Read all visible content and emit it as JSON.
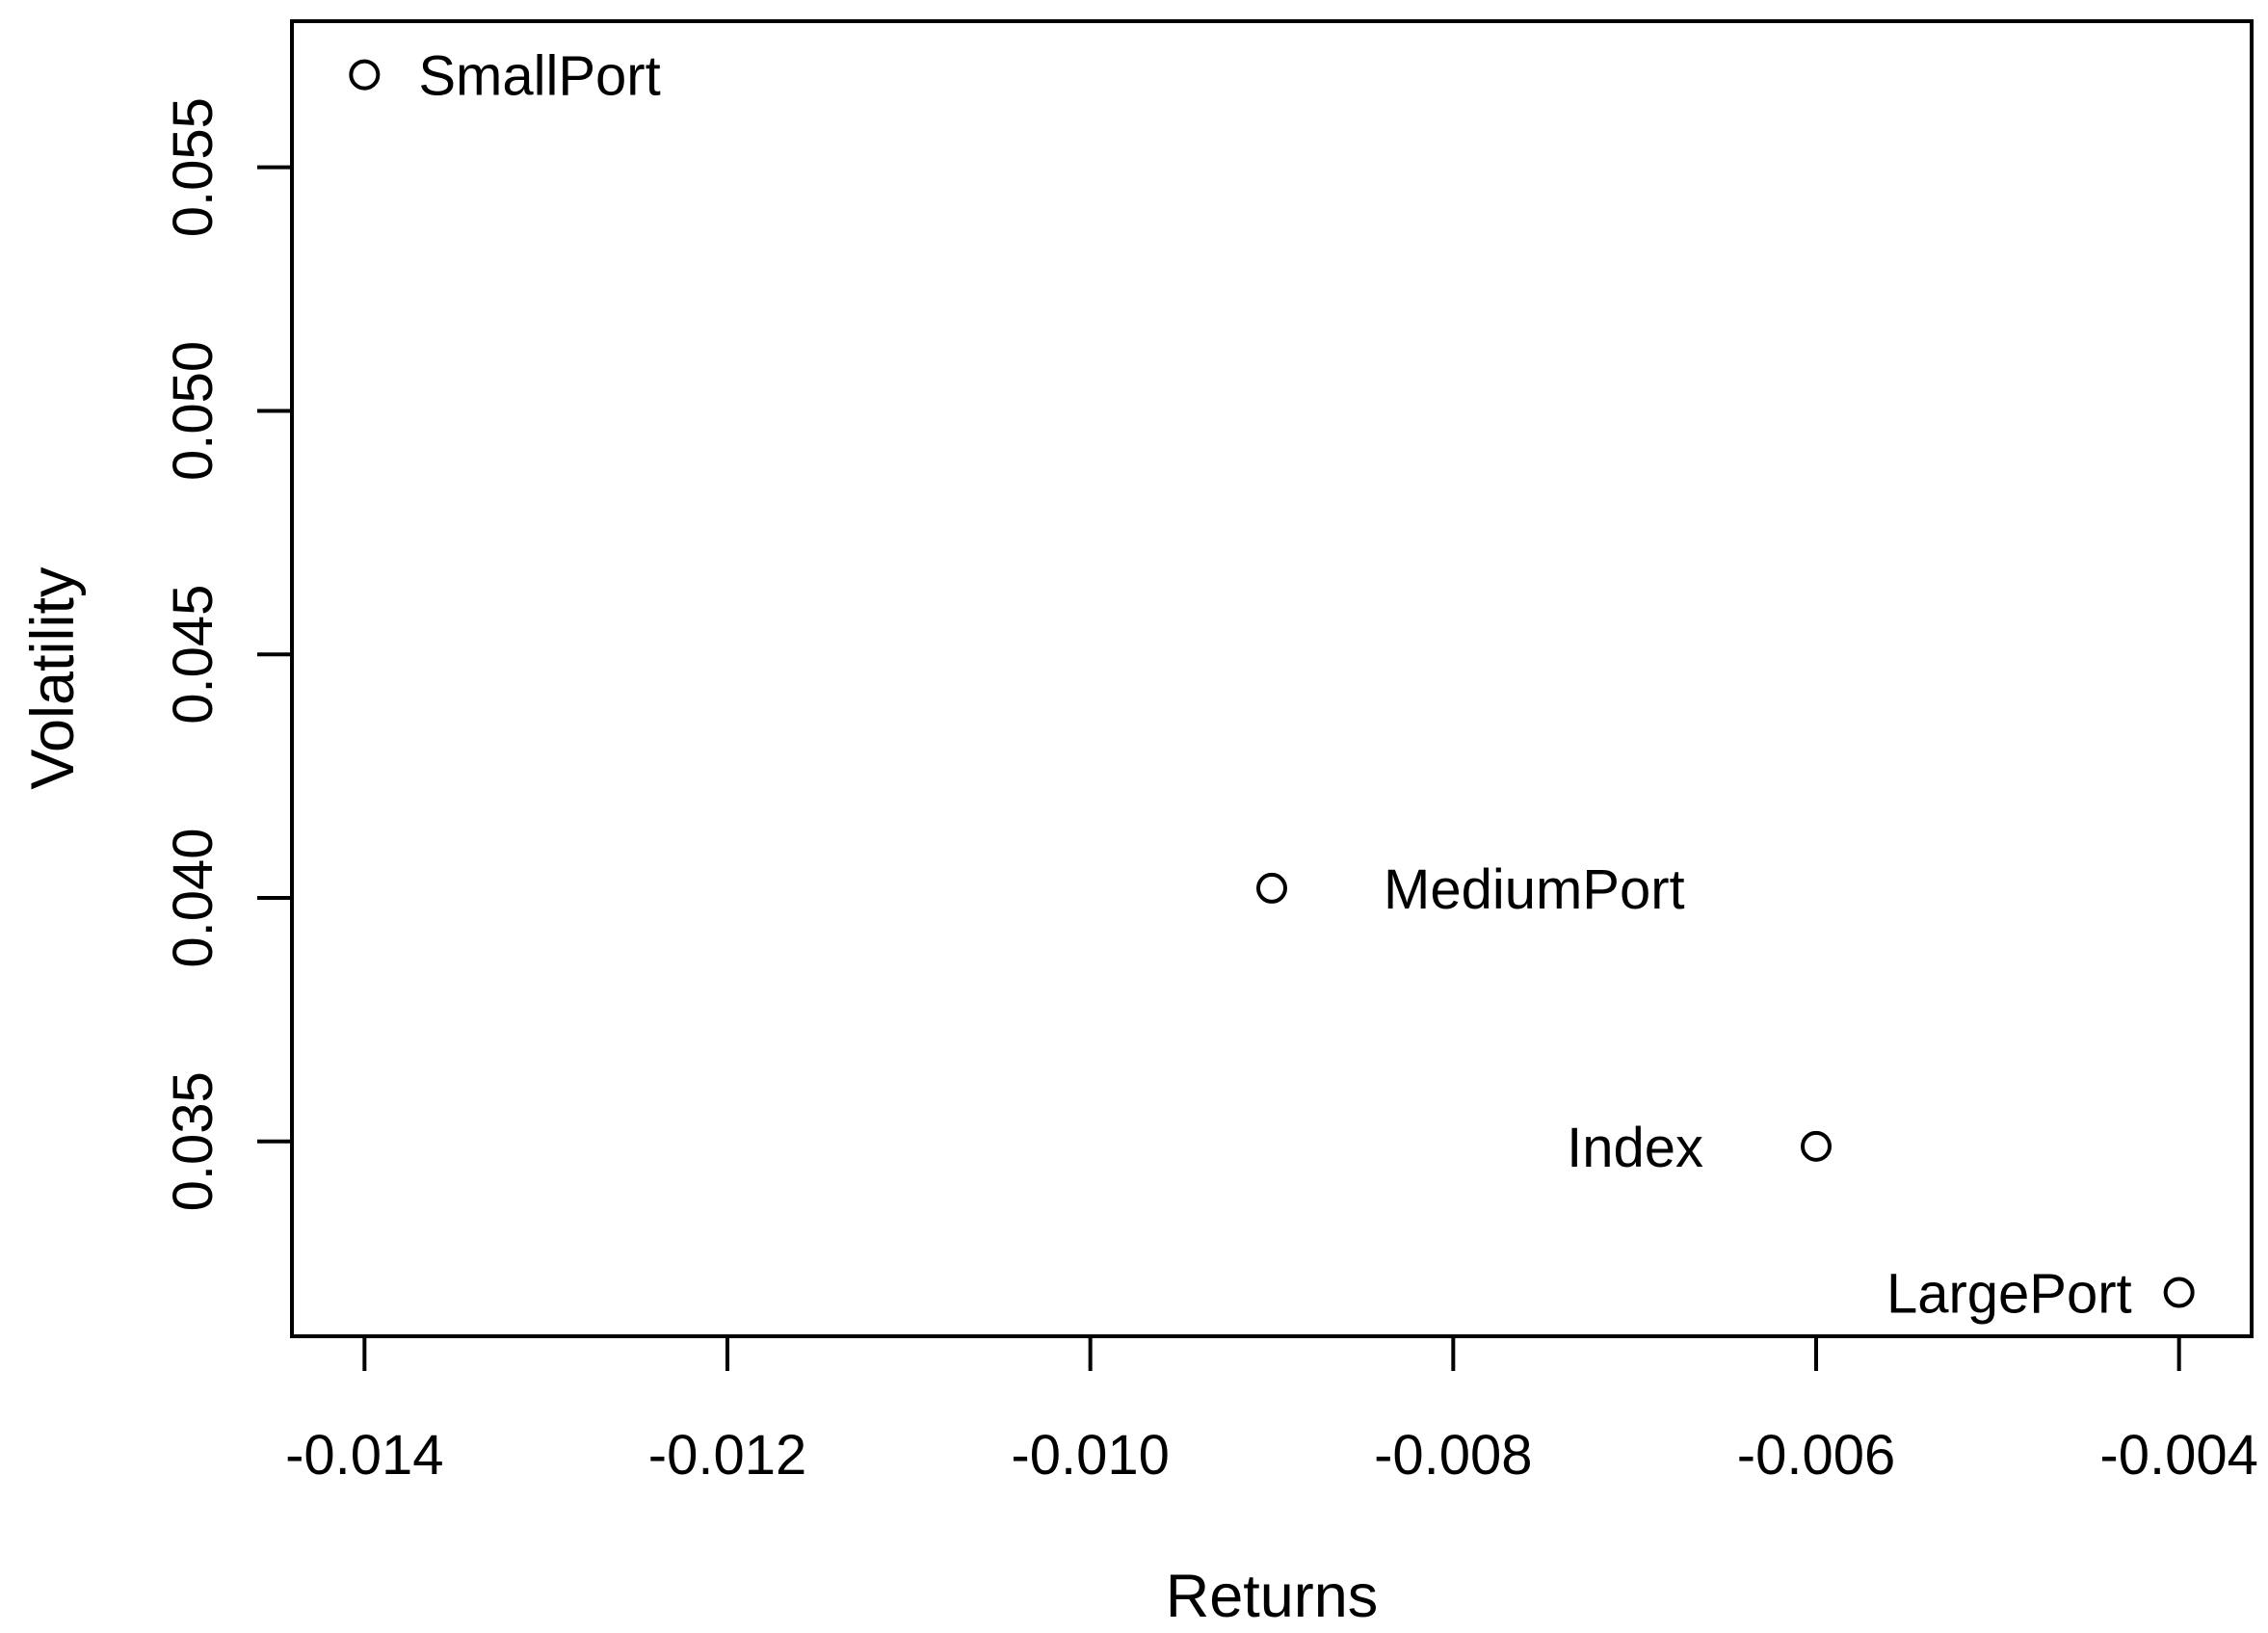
{
  "figure": {
    "background": "#ffffff",
    "foreground": "#000000"
  },
  "chart_data": {
    "type": "scatter",
    "title": "",
    "xlabel": "Returns",
    "ylabel": "Volatility",
    "xlim": [
      -0.0144,
      -0.0036
    ],
    "ylim": [
      0.031,
      0.058
    ],
    "x_ticks": [
      -0.014,
      -0.012,
      -0.01,
      -0.008,
      -0.006,
      -0.004
    ],
    "x_tick_labels": [
      "-0.014",
      "-0.012",
      "-0.010",
      "-0.008",
      "-0.006",
      "-0.004"
    ],
    "y_ticks": [
      0.035,
      0.04,
      0.045,
      0.05,
      0.055
    ],
    "y_tick_labels": [
      "0.035",
      "0.040",
      "0.045",
      "0.050",
      "0.055"
    ],
    "grid": false,
    "legend": "none",
    "marker": "open-circle",
    "points": [
      {
        "label": "SmallPort",
        "x": -0.014,
        "y": 0.0569,
        "label_side": "right",
        "label_gap": 56
      },
      {
        "label": "MediumPort",
        "x": -0.009,
        "y": 0.0402,
        "label_side": "right",
        "label_gap": 116
      },
      {
        "label": "Index",
        "x": -0.006,
        "y": 0.0349,
        "label_side": "left",
        "label_gap": 117
      },
      {
        "label": "LargePort",
        "x": -0.004,
        "y": 0.0319,
        "label_side": "left",
        "label_gap": 49
      }
    ]
  }
}
